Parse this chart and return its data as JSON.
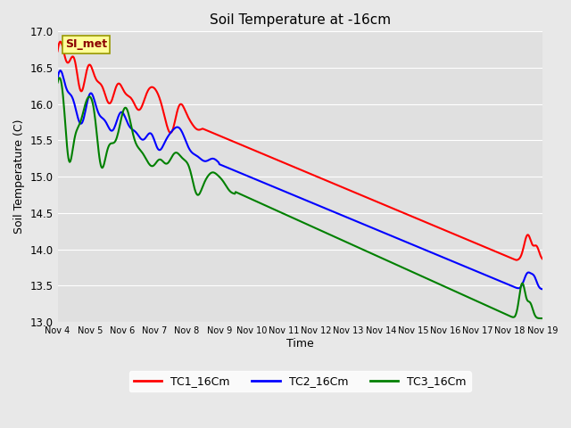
{
  "title": "Soil Temperature at -16cm",
  "xlabel": "Time",
  "ylabel": "Soil Temperature (C)",
  "ylim": [
    13.0,
    17.0
  ],
  "yticks": [
    13.0,
    13.5,
    14.0,
    14.5,
    15.0,
    15.5,
    16.0,
    16.5,
    17.0
  ],
  "xtick_labels": [
    "Nov 4",
    "Nov 5",
    "Nov 6",
    "Nov 7",
    "Nov 8",
    "Nov 9",
    "Nov 10",
    "Nov 11",
    "Nov 12",
    "Nov 13",
    "Nov 14",
    "Nov 15",
    "Nov 16",
    "Nov 17",
    "Nov 18",
    "Nov 19"
  ],
  "annotation_text": "SI_met",
  "annotation_box_color": "#ffff99",
  "annotation_box_edge": "#999900",
  "annotation_text_color": "#8B0000",
  "series": [
    {
      "label": "TC1_16Cm",
      "color": "red",
      "linewidth": 1.5
    },
    {
      "label": "TC2_16Cm",
      "color": "blue",
      "linewidth": 1.5
    },
    {
      "label": "TC3_16Cm",
      "color": "green",
      "linewidth": 1.5
    }
  ],
  "fig_facecolor": "#e8e8e8",
  "ax_facecolor": "#e0e0e0",
  "grid_color": "#ffffff"
}
